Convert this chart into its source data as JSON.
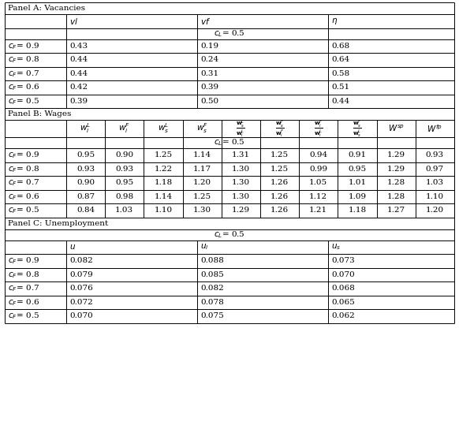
{
  "panel_a_title": "Panel A: Vacancies",
  "panel_b_title": "Panel B: Wages",
  "panel_c_title": "Panel C: Unemployment",
  "panel_a_rows": [
    [
      "0.9",
      "0.43",
      "0.19",
      "0.68"
    ],
    [
      "0.8",
      "0.44",
      "0.24",
      "0.64"
    ],
    [
      "0.7",
      "0.44",
      "0.31",
      "0.58"
    ],
    [
      "0.6",
      "0.42",
      "0.39",
      "0.51"
    ],
    [
      "0.5",
      "0.39",
      "0.50",
      "0.44"
    ]
  ],
  "panel_b_rows": [
    [
      "0.9",
      "0.95",
      "0.90",
      "1.25",
      "1.14",
      "1.31",
      "1.25",
      "0.94",
      "0.91",
      "1.29",
      "0.93"
    ],
    [
      "0.8",
      "0.93",
      "0.93",
      "1.22",
      "1.17",
      "1.30",
      "1.25",
      "0.99",
      "0.95",
      "1.29",
      "0.97"
    ],
    [
      "0.7",
      "0.90",
      "0.95",
      "1.18",
      "1.20",
      "1.30",
      "1.26",
      "1.05",
      "1.01",
      "1.28",
      "1.03"
    ],
    [
      "0.6",
      "0.87",
      "0.98",
      "1.14",
      "1.25",
      "1.30",
      "1.26",
      "1.12",
      "1.09",
      "1.28",
      "1.10"
    ],
    [
      "0.5",
      "0.84",
      "1.03",
      "1.10",
      "1.30",
      "1.29",
      "1.26",
      "1.21",
      "1.18",
      "1.27",
      "1.20"
    ]
  ],
  "panel_c_rows": [
    [
      "0.9",
      "0.082",
      "0.088",
      "0.073"
    ],
    [
      "0.8",
      "0.079",
      "0.085",
      "0.070"
    ],
    [
      "0.7",
      "0.076",
      "0.082",
      "0.068"
    ],
    [
      "0.6",
      "0.072",
      "0.078",
      "0.065"
    ],
    [
      "0.5",
      "0.070",
      "0.075",
      "0.062"
    ]
  ],
  "bg_color": "white",
  "line_color": "black",
  "text_color": "black",
  "fs": 7.5,
  "lw": 0.7
}
